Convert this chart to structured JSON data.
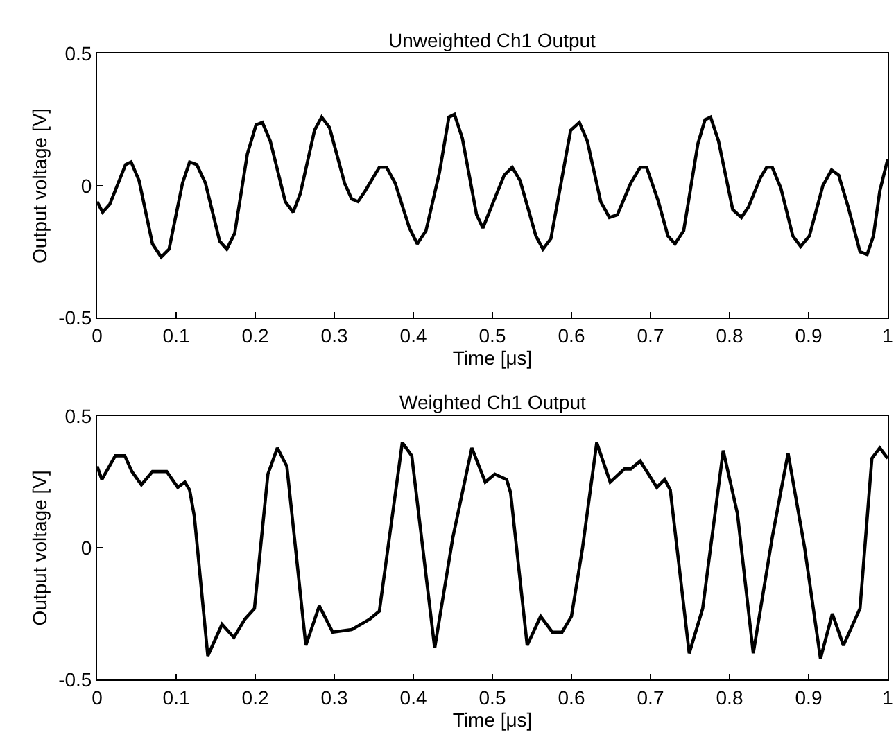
{
  "chart_data": [
    {
      "type": "line",
      "title": "Unweighted Ch1 Output",
      "xlabel": "Time [μs]",
      "ylabel": "Output voltage [V]",
      "xlim": [
        0,
        1
      ],
      "ylim": [
        -0.5,
        0.5
      ],
      "xticks": [
        0,
        0.1,
        0.2,
        0.3,
        0.4,
        0.5,
        0.6,
        0.7,
        0.8,
        0.9,
        1
      ],
      "yticks": [
        -0.5,
        0,
        0.5
      ],
      "grid": false,
      "marker": "none",
      "line_style": "solid",
      "series": [
        {
          "color": "#000000",
          "x": [
            0,
            0.007,
            0.016,
            0.036,
            0.043,
            0.053,
            0.07,
            0.081,
            0.091,
            0.108,
            0.117,
            0.126,
            0.137,
            0.155,
            0.164,
            0.174,
            0.19,
            0.201,
            0.209,
            0.219,
            0.238,
            0.248,
            0.257,
            0.275,
            0.284,
            0.294,
            0.313,
            0.322,
            0.33,
            0.339,
            0.357,
            0.366,
            0.377,
            0.395,
            0.405,
            0.416,
            0.433,
            0.445,
            0.452,
            0.462,
            0.48,
            0.488,
            0.5,
            0.515,
            0.525,
            0.535,
            0.555,
            0.564,
            0.574,
            0.599,
            0.61,
            0.62,
            0.637,
            0.648,
            0.658,
            0.675,
            0.687,
            0.695,
            0.71,
            0.722,
            0.731,
            0.742,
            0.76,
            0.769,
            0.776,
            0.786,
            0.804,
            0.815,
            0.824,
            0.839,
            0.847,
            0.854,
            0.865,
            0.88,
            0.89,
            0.901,
            0.918,
            0.929,
            0.938,
            0.95,
            0.965,
            0.974,
            0.982,
            0.99,
            1.0
          ],
          "values": [
            -0.06,
            -0.1,
            -0.07,
            0.08,
            0.09,
            0.02,
            -0.22,
            -0.27,
            -0.24,
            0.01,
            0.09,
            0.08,
            0.01,
            -0.21,
            -0.24,
            -0.18,
            0.12,
            0.23,
            0.24,
            0.17,
            -0.06,
            -0.1,
            -0.03,
            0.21,
            0.26,
            0.22,
            0.01,
            -0.05,
            -0.06,
            -0.02,
            0.07,
            0.07,
            0.01,
            -0.16,
            -0.22,
            -0.17,
            0.05,
            0.26,
            0.27,
            0.18,
            -0.11,
            -0.16,
            -0.07,
            0.04,
            0.07,
            0.02,
            -0.19,
            -0.24,
            -0.2,
            0.21,
            0.24,
            0.17,
            -0.06,
            -0.12,
            -0.11,
            0.01,
            0.07,
            0.07,
            -0.06,
            -0.19,
            -0.22,
            -0.17,
            0.16,
            0.25,
            0.26,
            0.17,
            -0.09,
            -0.12,
            -0.08,
            0.03,
            0.07,
            0.07,
            -0.01,
            -0.19,
            -0.23,
            -0.19,
            0.0,
            0.06,
            0.04,
            -0.08,
            -0.25,
            -0.26,
            -0.19,
            -0.02,
            0.1
          ]
        }
      ]
    },
    {
      "type": "line",
      "title": "Weighted Ch1 Output",
      "xlabel": "Time [μs]",
      "ylabel": "Output voltage [V]",
      "xlim": [
        0,
        1
      ],
      "ylim": [
        -0.5,
        0.5
      ],
      "xticks": [
        0,
        0.1,
        0.2,
        0.3,
        0.4,
        0.5,
        0.6,
        0.7,
        0.8,
        0.9,
        1
      ],
      "yticks": [
        -0.5,
        0,
        0.5
      ],
      "grid": false,
      "marker": "none",
      "line_style": "solid",
      "series": [
        {
          "color": "#000000",
          "x": [
            0,
            0.006,
            0.023,
            0.035,
            0.044,
            0.056,
            0.07,
            0.088,
            0.102,
            0.111,
            0.117,
            0.123,
            0.14,
            0.158,
            0.173,
            0.187,
            0.199,
            0.216,
            0.228,
            0.24,
            0.264,
            0.281,
            0.298,
            0.322,
            0.345,
            0.357,
            0.386,
            0.398,
            0.427,
            0.45,
            0.474,
            0.491,
            0.503,
            0.518,
            0.523,
            0.544,
            0.561,
            0.576,
            0.588,
            0.6,
            0.614,
            0.632,
            0.649,
            0.667,
            0.675,
            0.687,
            0.708,
            0.718,
            0.725,
            0.749,
            0.766,
            0.792,
            0.81,
            0.83,
            0.854,
            0.874,
            0.895,
            0.915,
            0.93,
            0.944,
            0.965,
            0.98,
            0.99,
            1.0
          ],
          "values": [
            0.31,
            0.26,
            0.35,
            0.35,
            0.29,
            0.24,
            0.29,
            0.29,
            0.23,
            0.25,
            0.22,
            0.12,
            -0.41,
            -0.29,
            -0.34,
            -0.27,
            -0.23,
            0.28,
            0.38,
            0.31,
            -0.37,
            -0.22,
            -0.32,
            -0.31,
            -0.27,
            -0.24,
            0.4,
            0.35,
            -0.38,
            0.04,
            0.38,
            0.25,
            0.28,
            0.26,
            0.21,
            -0.37,
            -0.26,
            -0.32,
            -0.32,
            -0.26,
            0.0,
            0.4,
            0.25,
            0.3,
            0.3,
            0.33,
            0.23,
            0.26,
            0.22,
            -0.4,
            -0.23,
            0.37,
            0.13,
            -0.4,
            0.04,
            0.36,
            0.0,
            -0.42,
            -0.25,
            -0.37,
            -0.23,
            0.34,
            0.38,
            0.34
          ]
        }
      ]
    }
  ]
}
